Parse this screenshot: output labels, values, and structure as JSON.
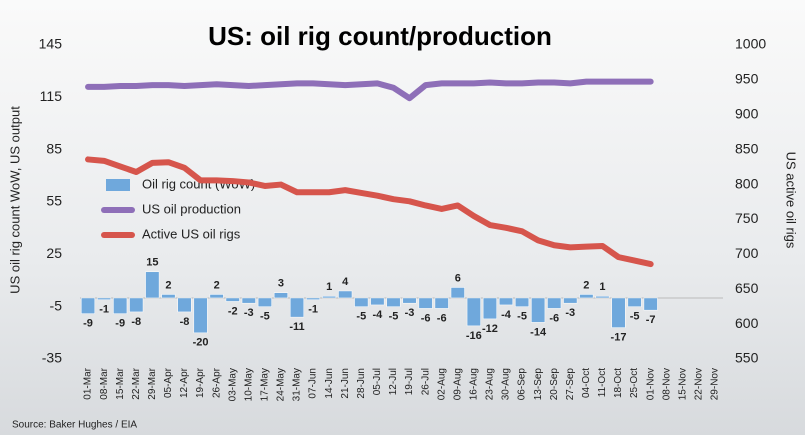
{
  "chart_data": {
    "type": "bar_line",
    "title": "US: oil rig count/production",
    "y_label": "US oil rig count WoW, US output",
    "y2_label": "US active oil rigs",
    "source": "Source: Baker Hughes / EIA",
    "categories": [
      "01-Mar",
      "08-Mar",
      "15-Mar",
      "22-Mar",
      "29-Mar",
      "05-Apr",
      "12-Apr",
      "19-Apr",
      "26-Apr",
      "03-May",
      "10-May",
      "17-May",
      "24-May",
      "31-May",
      "07-Jun",
      "14-Jun",
      "21-Jun",
      "28-Jun",
      "05-Jul",
      "12-Jul",
      "19-Jul",
      "26-Jul",
      "02-Aug",
      "09-Aug",
      "16-Aug",
      "23-Aug",
      "30-Aug",
      "06-Sep",
      "13-Sep",
      "20-Sep",
      "27-Sep",
      "04-Oct",
      "11-Oct",
      "18-Oct",
      "25-Oct",
      "01-Nov",
      "08-Nov",
      "15-Nov",
      "22-Nov",
      "29-Nov"
    ],
    "ylim": [
      -35,
      145
    ],
    "yticks": [
      -35,
      -5,
      25,
      55,
      85,
      115,
      145
    ],
    "y2lim": [
      550,
      1000
    ],
    "y2ticks": [
      550,
      600,
      650,
      700,
      750,
      800,
      850,
      900,
      950,
      1000
    ],
    "series": [
      {
        "name": "Oil rig count (WoW)",
        "type": "bar",
        "color": "#6fa8dc",
        "values": [
          -9,
          -1,
          -9,
          -8,
          15,
          2,
          -8,
          -20,
          2,
          -2,
          -3,
          -5,
          3,
          -11,
          -1,
          1,
          4,
          -5,
          -4,
          -5,
          -3,
          -6,
          -6,
          6,
          -16,
          -12,
          -4,
          -5,
          -14,
          -6,
          -3,
          2,
          1,
          -17,
          -5,
          -7,
          null,
          null,
          null,
          null
        ]
      },
      {
        "name": "US oil production",
        "type": "line",
        "color": "#8e6fb8",
        "values": [
          121,
          121,
          121.5,
          121.5,
          122,
          122,
          121.5,
          122,
          122.5,
          122,
          121.5,
          122,
          122.5,
          123,
          123,
          122.5,
          122,
          122.5,
          123,
          120.5,
          114.5,
          122,
          123,
          123,
          123,
          123.5,
          123,
          123,
          123.5,
          123.5,
          123,
          124,
          124,
          124,
          124,
          124,
          null,
          null,
          null,
          null
        ]
      },
      {
        "name": "Active US oil rigs",
        "type": "line",
        "axis": "y2",
        "color": "#d6554c",
        "values": [
          836,
          834,
          826,
          818,
          831,
          832,
          824,
          806,
          806,
          805,
          803,
          798,
          800,
          789,
          789,
          789,
          792,
          788,
          784,
          779,
          776,
          770,
          765,
          770,
          755,
          742,
          738,
          733,
          720,
          713,
          710,
          711,
          712,
          696,
          691,
          686,
          null,
          null,
          null,
          null
        ]
      }
    ]
  }
}
